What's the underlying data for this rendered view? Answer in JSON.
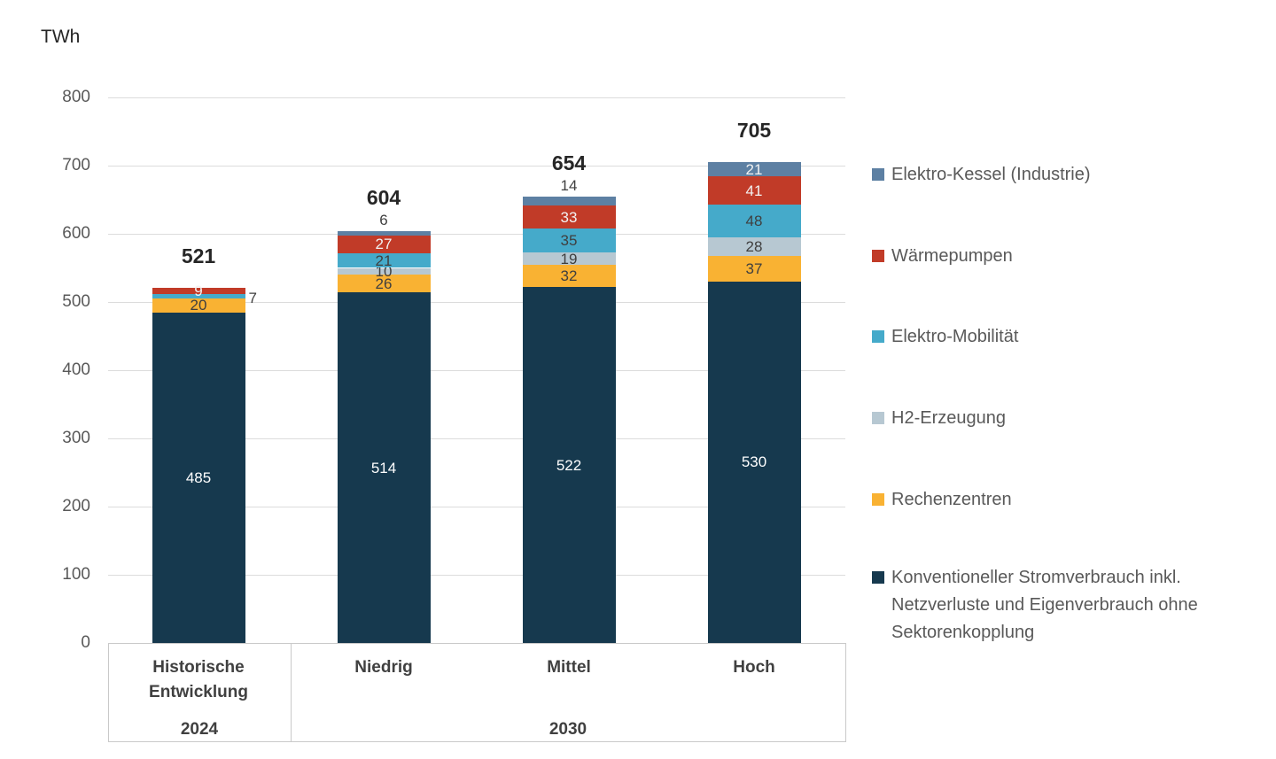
{
  "unit_label": "TWh",
  "chart_data": {
    "type": "bar",
    "stacked": true,
    "title": "",
    "unit": "TWh",
    "categories": [
      "Historische Entwicklung",
      "Niedrig",
      "Mittel",
      "Hoch"
    ],
    "x_groups": [
      {
        "label": "2024",
        "from": 0,
        "to": 0
      },
      {
        "label": "2030",
        "from": 1,
        "to": 3
      }
    ],
    "ylim": [
      0,
      800
    ],
    "y_ticks": [
      "0",
      "100",
      "200",
      "300",
      "400",
      "500",
      "600",
      "700",
      "800"
    ],
    "grid": true,
    "legend_position": "right",
    "totals_display": [
      "521",
      "604",
      "654",
      "705"
    ],
    "series": [
      {
        "id": "elektro-kessel",
        "label": "Elektro-Kessel (Industrie)",
        "color": "#5D80A3",
        "value_text_color": "#F2F2F2",
        "values": [
          0,
          6,
          14,
          21
        ],
        "label_placements": [
          "none",
          "above",
          "above",
          "inside"
        ]
      },
      {
        "id": "waermepumpen",
        "label": "Wärmepumpen",
        "color": "#C13B28",
        "value_text_color": "#F2F2F2",
        "values": [
          9,
          27,
          33,
          41
        ],
        "label_placements": [
          "inside",
          "inside",
          "inside",
          "inside"
        ]
      },
      {
        "id": "elektro-mobilitaet",
        "label": "Elektro-Mobilität",
        "color": "#45AACA",
        "value_text_color": "#3F3F3F",
        "values": [
          7,
          21,
          35,
          48
        ],
        "label_placements": [
          "outside-right",
          "inside",
          "inside",
          "inside"
        ]
      },
      {
        "id": "h2-erzeugung",
        "label": "H2-Erzeugung",
        "color": "#B7C8D2",
        "value_text_color": "#3F3F3F",
        "values": [
          0,
          10,
          19,
          28
        ],
        "label_placements": [
          "none",
          "inside",
          "inside",
          "inside"
        ]
      },
      {
        "id": "rechenzentren",
        "label": "Rechenzentren",
        "color": "#F9B233",
        "value_text_color": "#3F3F3F",
        "values": [
          20,
          26,
          32,
          37
        ],
        "label_placements": [
          "inside",
          "inside",
          "inside",
          "inside"
        ]
      },
      {
        "id": "konventionell",
        "label": "Konventioneller Stromverbrauch inkl. Netzverluste und Eigenverbrauch ohne Sektorenkopplung",
        "color": "#16394E",
        "value_text_color": "#FFFFFF",
        "values": [
          485,
          514,
          522,
          530
        ],
        "label_placements": [
          "inside",
          "inside",
          "inside",
          "inside"
        ]
      }
    ],
    "colors": {
      "grid": "#DCDCDC",
      "axis_box": "#C9C9C9",
      "tick_text": "#595959",
      "total_text": "#262626",
      "category_text": "#404040",
      "legend_text": "#595959",
      "callout_text": "#404040"
    }
  }
}
